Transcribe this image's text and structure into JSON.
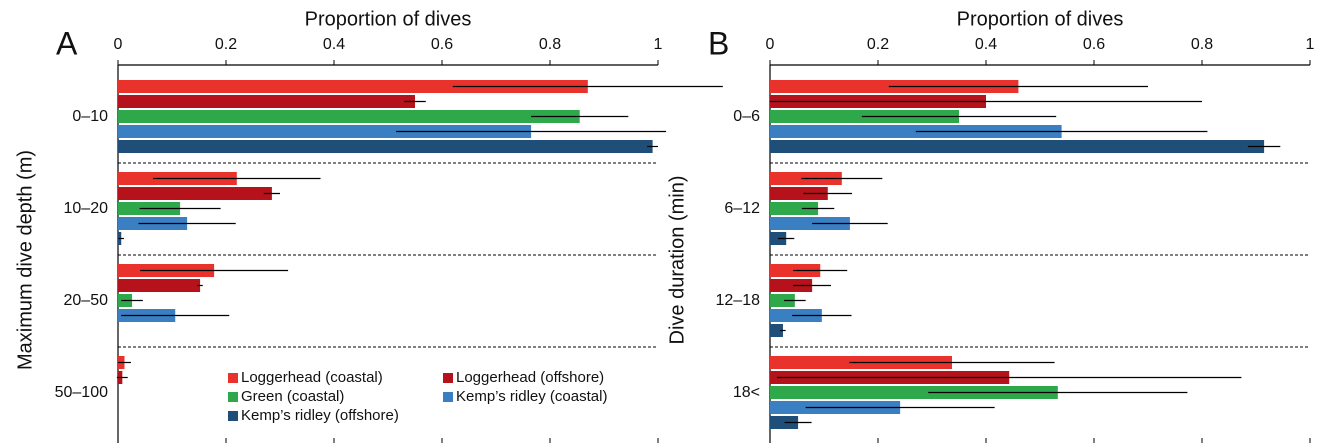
{
  "chart_data": [
    {
      "type": "bar",
      "orientation": "horizontal",
      "panel": "A",
      "xlabel": "Proportion of dives",
      "ylabel": "Maximum dive depth (m)",
      "categories": [
        "0–10",
        "10–20",
        "20–50",
        "50–100"
      ],
      "xlim": [
        0,
        1
      ],
      "xticks": [
        0,
        0.2,
        0.4,
        0.6,
        0.8,
        1
      ],
      "legend": "lower right",
      "series": [
        {
          "name": "Loggerhead (coastal)",
          "color": "#e8322b",
          "values": [
            0.87,
            0.22,
            0.178,
            0.012
          ],
          "errors": [
            0.25,
            0.155,
            0.137,
            0.012
          ]
        },
        {
          "name": "Loggerhead (offshore)",
          "color": "#b5121b",
          "values": [
            0.55,
            0.285,
            0.152,
            0.008
          ],
          "errors": [
            0.02,
            0.015,
            0.005,
            0.01
          ]
        },
        {
          "name": "Green (coastal)",
          "color": "#2ea84a",
          "values": [
            0.855,
            0.115,
            0.026,
            0
          ],
          "errors": [
            0.09,
            0.075,
            0.02,
            0
          ]
        },
        {
          "name": "Kemp’s ridley (coastal)",
          "color": "#3a7fc1",
          "values": [
            0.765,
            0.128,
            0.106,
            0
          ],
          "errors": [
            0.25,
            0.09,
            0.1,
            0
          ]
        },
        {
          "name": "Kemp’s ridley (offshore)",
          "color": "#1f4e79",
          "values": [
            0.99,
            0.006,
            0,
            0
          ],
          "errors": [
            0.01,
            0.005,
            0,
            0
          ]
        }
      ]
    },
    {
      "type": "bar",
      "orientation": "horizontal",
      "panel": "B",
      "xlabel": "Proportion of dives",
      "ylabel": "Dive duration (min)",
      "categories": [
        "0–6",
        "6–12",
        "12–18",
        "18<"
      ],
      "xlim": [
        0,
        1
      ],
      "xticks": [
        0,
        0.2,
        0.4,
        0.6,
        0.8,
        1
      ],
      "series": [
        {
          "color": "#e8322b",
          "values": [
            0.46,
            0.133,
            0.093,
            0.337
          ],
          "errors": [
            0.24,
            0.075,
            0.05,
            0.19
          ]
        },
        {
          "color": "#b5121b",
          "values": [
            0.4,
            0.107,
            0.078,
            0.443
          ],
          "errors": [
            0.4,
            0.045,
            0.035,
            0.43
          ]
        },
        {
          "color": "#2ea84a",
          "values": [
            0.35,
            0.089,
            0.046,
            0.533
          ],
          "errors": [
            0.18,
            0.03,
            0.02,
            0.24
          ]
        },
        {
          "color": "#3a7fc1",
          "values": [
            0.54,
            0.148,
            0.096,
            0.241
          ],
          "errors": [
            0.27,
            0.07,
            0.055,
            0.175
          ]
        },
        {
          "color": "#1f4e79",
          "values": [
            0.915,
            0.03,
            0.024,
            0.052
          ],
          "errors": [
            0.03,
            0.015,
            0.005,
            0.025
          ]
        }
      ]
    }
  ]
}
